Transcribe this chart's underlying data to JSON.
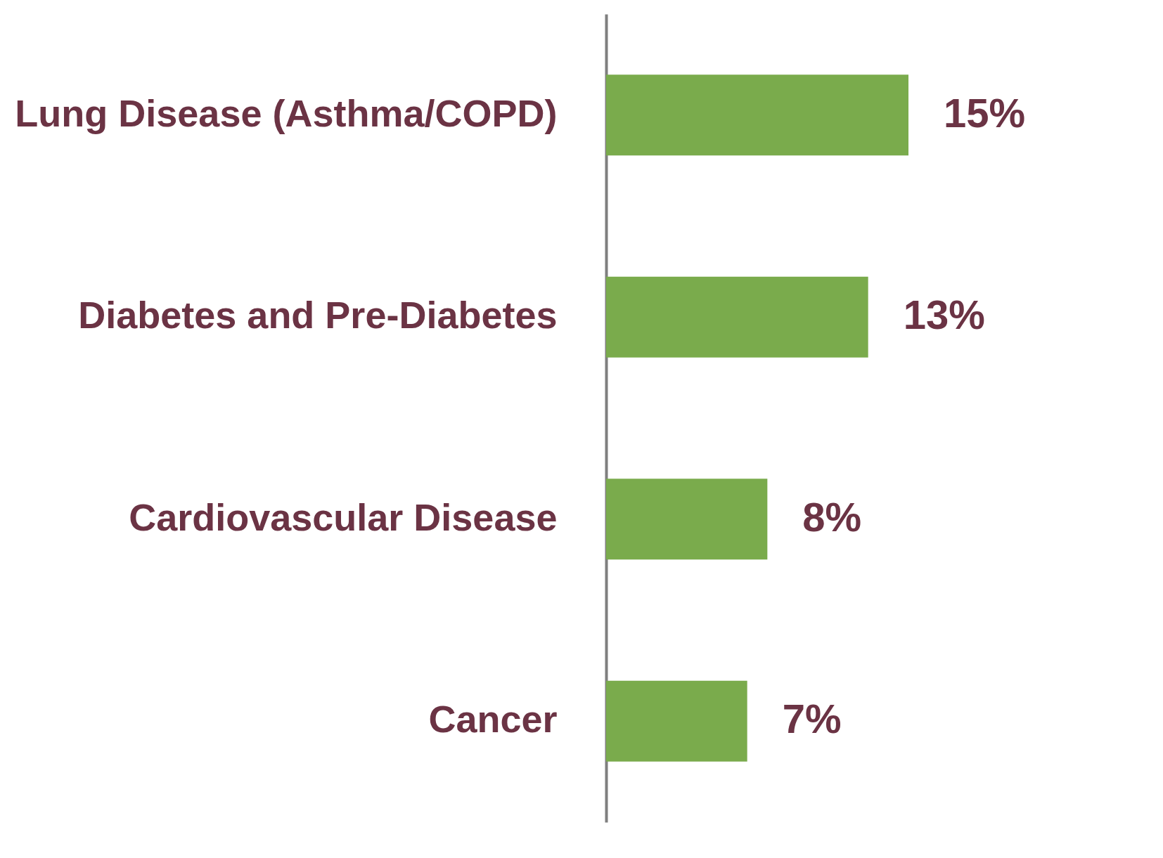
{
  "chart_data": {
    "type": "bar",
    "orientation": "horizontal",
    "categories": [
      "Lung Disease (Asthma/COPD)",
      "Diabetes and Pre-Diabetes",
      "Cardiovascular Disease",
      "Cancer"
    ],
    "values": [
      15,
      13,
      8,
      7
    ],
    "value_labels": [
      "15%",
      "13%",
      "8%",
      "7%"
    ],
    "color": "#7aab4c"
  }
}
